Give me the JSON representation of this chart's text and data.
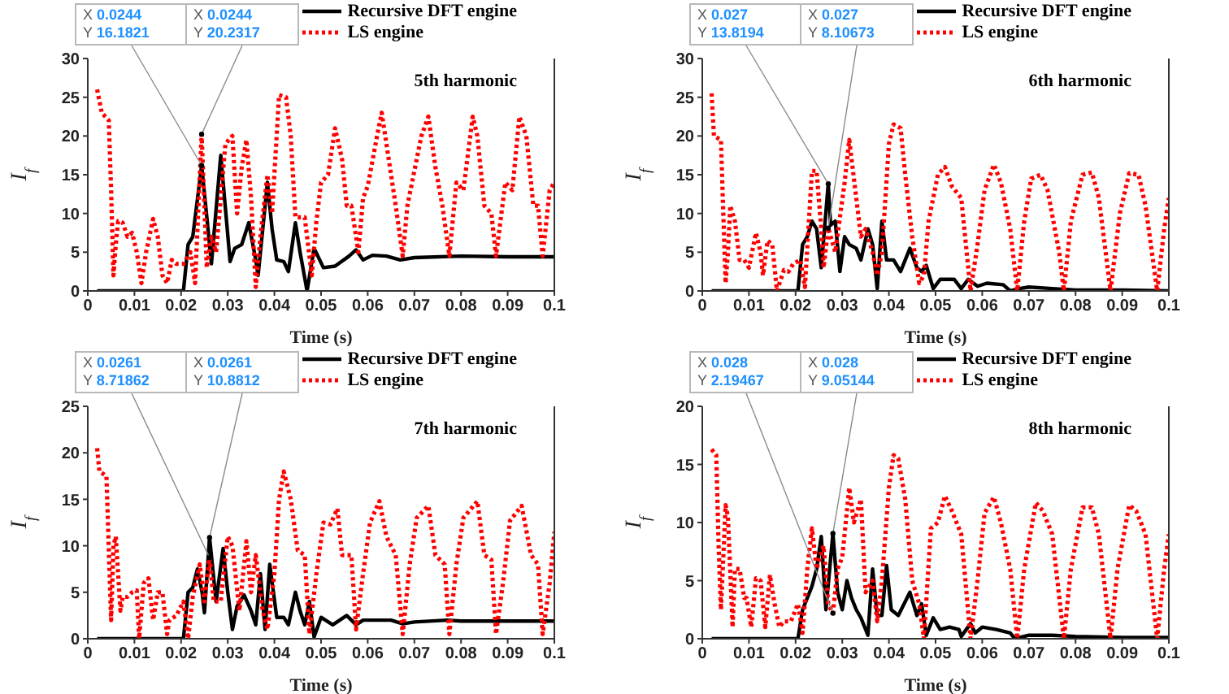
{
  "chart_data": [
    {
      "type": "line",
      "title": "5th harmonic",
      "xlabel": "Time (s)",
      "ylabel": "I$_{f}$",
      "xlim": [
        0,
        0.1
      ],
      "xticks": [
        0,
        0.01,
        0.02,
        0.03,
        0.04,
        0.05,
        0.06,
        0.07,
        0.08,
        0.09,
        0.1
      ],
      "ylim": [
        0,
        30
      ],
      "yticks": [
        0,
        5,
        10,
        15,
        20,
        25,
        30
      ],
      "grid": false,
      "legend": "top right",
      "marker": "none",
      "annotations": [
        {
          "text": "X 0.0244\nY 16.1821",
          "x": 0.0244,
          "y": 16.1821
        },
        {
          "text": "X 0.0244\nY 20.2317",
          "x": 0.0244,
          "y": 20.2317
        }
      ],
      "series": [
        {
          "name": "Recursive DFT engine",
          "color": "#000000",
          "line_style": "solid",
          "x": [
            0.002,
            0.0205,
            0.0215,
            0.0225,
            0.0244,
            0.0256,
            0.0265,
            0.0285,
            0.0305,
            0.0315,
            0.033,
            0.0345,
            0.036,
            0.0365,
            0.0385,
            0.0395,
            0.0405,
            0.042,
            0.043,
            0.0445,
            0.0455,
            0.047,
            0.0485,
            0.0505,
            0.053,
            0.056,
            0.0575,
            0.059,
            0.061,
            0.064,
            0.067,
            0.07,
            0.08,
            0.09,
            0.1
          ],
          "values": [
            0,
            0,
            6,
            7,
            16.1821,
            9,
            3.5,
            17.5,
            3.8,
            5.5,
            6,
            8.8,
            4,
            2,
            14,
            8,
            4,
            3.8,
            2.5,
            8.8,
            5,
            0,
            5.5,
            3,
            3.2,
            4.5,
            5.3,
            4,
            4.6,
            4.5,
            4,
            4.3,
            4.5,
            4.4,
            4.4
          ]
        },
        {
          "name": "LS engine",
          "color": "#ff0000",
          "line_style": "dotted",
          "x": [
            0.002,
            0.003,
            0.0045,
            0.005,
            0.0055,
            0.006,
            0.0065,
            0.0075,
            0.0085,
            0.0095,
            0.0105,
            0.0115,
            0.0125,
            0.014,
            0.015,
            0.016,
            0.017,
            0.018,
            0.019,
            0.0205,
            0.022,
            0.023,
            0.0244,
            0.0255,
            0.0265,
            0.0275,
            0.0295,
            0.031,
            0.032,
            0.033,
            0.034,
            0.035,
            0.036,
            0.037,
            0.0385,
            0.0395,
            0.041,
            0.0425,
            0.0435,
            0.0445,
            0.0465,
            0.048,
            0.049,
            0.05,
            0.0515,
            0.053,
            0.0545,
            0.0555,
            0.0565,
            0.058,
            0.059,
            0.06,
            0.062,
            0.063,
            0.0645,
            0.066,
            0.0675,
            0.0685,
            0.0695,
            0.0715,
            0.073,
            0.0745,
            0.076,
            0.0775,
            0.079,
            0.0805,
            0.0825,
            0.0835,
            0.085,
            0.0865,
            0.0875,
            0.0895,
            0.091,
            0.0925,
            0.094,
            0.0955,
            0.0965,
            0.0975,
            0.099,
            0.1
          ],
          "values": [
            26,
            23,
            22,
            13,
            2,
            6,
            9,
            8.8,
            7,
            7.5,
            5,
            1,
            5,
            9.3,
            7,
            2,
            1,
            4,
            3.5,
            3.5,
            5,
            1,
            20.2317,
            3,
            7,
            5,
            19,
            20,
            10,
            16,
            19.5,
            12,
            0.5,
            7,
            15,
            10,
            25.3,
            25,
            20,
            9.5,
            9.5,
            2,
            9,
            14,
            15,
            21,
            17,
            11,
            11,
            5,
            12,
            13.5,
            20,
            23,
            17,
            11,
            4.5,
            11,
            14,
            20,
            22.5,
            16,
            11,
            4.5,
            14,
            13,
            22.5,
            20,
            11,
            10,
            4.5,
            14,
            13,
            22.5,
            20,
            11,
            11,
            4.5,
            13,
            14
          ]
        }
      ]
    },
    {
      "type": "line",
      "title": "6th harmonic",
      "xlabel": "Time (s)",
      "ylabel": "I$_{f}$",
      "xlim": [
        0,
        0.1
      ],
      "xticks": [
        0,
        0.01,
        0.02,
        0.03,
        0.04,
        0.05,
        0.06,
        0.07,
        0.08,
        0.09,
        0.1
      ],
      "ylim": [
        0,
        30
      ],
      "yticks": [
        0,
        5,
        10,
        15,
        20,
        25,
        30
      ],
      "grid": false,
      "legend": "top right",
      "marker": "none",
      "annotations": [
        {
          "text": "X 0.027\nY 13.8194",
          "x": 0.027,
          "y": 13.8194
        },
        {
          "text": "X 0.027\nY 8.10673",
          "x": 0.027,
          "y": 8.10673
        }
      ],
      "series": [
        {
          "name": "Recursive DFT engine",
          "color": "#000000",
          "line_style": "solid",
          "x": [
            0.002,
            0.0205,
            0.0215,
            0.0225,
            0.0235,
            0.0245,
            0.0255,
            0.027,
            0.0275,
            0.0285,
            0.0295,
            0.0305,
            0.0315,
            0.033,
            0.034,
            0.0355,
            0.0365,
            0.0375,
            0.0385,
            0.0395,
            0.041,
            0.0425,
            0.0445,
            0.046,
            0.047,
            0.048,
            0.0495,
            0.051,
            0.054,
            0.0555,
            0.057,
            0.059,
            0.061,
            0.0645,
            0.066,
            0.068,
            0.07,
            0.075,
            0.08,
            0.09,
            0.1
          ],
          "values": [
            0,
            0,
            6,
            7,
            9,
            8,
            3,
            13.8194,
            8.5,
            9,
            2.5,
            7,
            6,
            5.5,
            4,
            8,
            6,
            0.3,
            9,
            4,
            4,
            2.5,
            5.5,
            3,
            2.5,
            3.3,
            0.3,
            1.5,
            1.5,
            0.3,
            1.5,
            0.6,
            1,
            0.8,
            0,
            0.3,
            0.5,
            0.3,
            0.1,
            0.1,
            0
          ]
        },
        {
          "name": "LS engine",
          "color": "#ff0000",
          "line_style": "dotted",
          "x": [
            0.002,
            0.0025,
            0.004,
            0.0045,
            0.005,
            0.0055,
            0.006,
            0.007,
            0.008,
            0.009,
            0.01,
            0.0105,
            0.0115,
            0.0125,
            0.013,
            0.014,
            0.015,
            0.016,
            0.0175,
            0.0185,
            0.0195,
            0.021,
            0.022,
            0.0235,
            0.0245,
            0.0255,
            0.026,
            0.027,
            0.0285,
            0.0305,
            0.0315,
            0.033,
            0.034,
            0.035,
            0.0365,
            0.0375,
            0.0385,
            0.04,
            0.041,
            0.0425,
            0.0435,
            0.045,
            0.0465,
            0.0475,
            0.0485,
            0.0505,
            0.052,
            0.0535,
            0.0555,
            0.0575,
            0.059,
            0.0605,
            0.0625,
            0.064,
            0.066,
            0.0675,
            0.069,
            0.0705,
            0.0725,
            0.074,
            0.0765,
            0.0775,
            0.079,
            0.0815,
            0.0835,
            0.085,
            0.0875,
            0.0895,
            0.0915,
            0.0935,
            0.095,
            0.0975,
            0.099,
            0.1
          ],
          "values": [
            25.5,
            20,
            19.5,
            10,
            1,
            5,
            11,
            9,
            4,
            4,
            3,
            4.5,
            7.5,
            5,
            2,
            6.5,
            6,
            0,
            2.7,
            2.5,
            3.5,
            4,
            0.5,
            15.5,
            15.5,
            8,
            3,
            8.10673,
            5,
            14,
            19.5,
            12,
            7,
            8,
            5,
            2,
            5,
            19,
            21.5,
            21,
            15,
            7,
            1,
            2,
            9,
            15,
            16,
            13.5,
            12,
            0,
            6,
            13,
            16.3,
            14,
            8,
            0,
            9,
            14.5,
            15,
            13,
            5,
            0,
            9,
            15,
            15.3,
            12,
            0,
            10,
            15.2,
            15,
            11,
            0,
            8,
            12
          ]
        }
      ]
    },
    {
      "type": "line",
      "title": "7th harmonic",
      "xlabel": "Time (s)",
      "ylabel": "I$_{f}$",
      "xlim": [
        0,
        0.1
      ],
      "xticks": [
        0,
        0.01,
        0.02,
        0.03,
        0.04,
        0.05,
        0.06,
        0.07,
        0.08,
        0.09,
        0.1
      ],
      "ylim": [
        0,
        25
      ],
      "yticks": [
        0,
        5,
        10,
        15,
        20,
        25
      ],
      "grid": false,
      "legend": "top right",
      "marker": "none",
      "annotations": [
        {
          "text": "X 0.0261\nY 8.71862",
          "x": 0.0261,
          "y": 8.71862
        },
        {
          "text": "X 0.0261\nY 10.8812",
          "x": 0.0261,
          "y": 10.8812
        }
      ],
      "series": [
        {
          "name": "Recursive DFT engine",
          "color": "#000000",
          "line_style": "solid",
          "x": [
            0.002,
            0.0205,
            0.0215,
            0.0225,
            0.0235,
            0.0245,
            0.025,
            0.0261,
            0.0275,
            0.029,
            0.03,
            0.031,
            0.032,
            0.0335,
            0.035,
            0.036,
            0.037,
            0.038,
            0.039,
            0.0405,
            0.042,
            0.043,
            0.0445,
            0.0455,
            0.0465,
            0.0475,
            0.0485,
            0.05,
            0.0525,
            0.0555,
            0.0575,
            0.059,
            0.062,
            0.065,
            0.0675,
            0.07,
            0.077,
            0.08,
            0.09,
            0.1
          ],
          "values": [
            0,
            0,
            5,
            5.5,
            7.5,
            5,
            2.8,
            10.8812,
            4,
            9.7,
            5,
            1,
            3.5,
            4.7,
            3,
            1.5,
            7,
            1,
            8,
            2.3,
            2.3,
            1.5,
            5,
            3,
            1.5,
            4,
            0.2,
            2.3,
            1.5,
            2.5,
            1.5,
            2,
            2,
            2,
            1.6,
            1.8,
            2,
            1.9,
            1.9,
            1.9
          ]
        },
        {
          "name": "LS engine",
          "color": "#ff0000",
          "line_style": "dotted",
          "x": [
            0.002,
            0.0025,
            0.004,
            0.005,
            0.0055,
            0.006,
            0.007,
            0.0075,
            0.0085,
            0.0095,
            0.0105,
            0.011,
            0.012,
            0.013,
            0.014,
            0.015,
            0.016,
            0.017,
            0.0175,
            0.019,
            0.0205,
            0.0215,
            0.0225,
            0.024,
            0.025,
            0.0261,
            0.027,
            0.0285,
            0.03,
            0.031,
            0.0325,
            0.034,
            0.035,
            0.036,
            0.0375,
            0.0385,
            0.04,
            0.041,
            0.042,
            0.0435,
            0.045,
            0.0465,
            0.0475,
            0.049,
            0.0505,
            0.052,
            0.0535,
            0.0545,
            0.0565,
            0.0575,
            0.059,
            0.0605,
            0.0625,
            0.064,
            0.066,
            0.0675,
            0.069,
            0.0705,
            0.073,
            0.0745,
            0.0765,
            0.0775,
            0.079,
            0.0805,
            0.0835,
            0.085,
            0.0865,
            0.0875,
            0.089,
            0.0905,
            0.093,
            0.095,
            0.0965,
            0.0975,
            0.099,
            0.1
          ],
          "values": [
            20.5,
            18,
            17.5,
            2,
            10,
            11,
            3,
            4.5,
            4.5,
            5,
            5.2,
            0,
            6,
            6.5,
            2,
            5,
            5,
            0.5,
            2,
            2.5,
            4,
            0,
            4.5,
            8,
            4,
            8.71862,
            4,
            4,
            11,
            10,
            3,
            10.5,
            5,
            9,
            3,
            1,
            7,
            15,
            18,
            15,
            9.5,
            9,
            0.5,
            7,
            12.5,
            12.3,
            14,
            9,
            9,
            1,
            7,
            12.5,
            14.8,
            11,
            9,
            0.5,
            8,
            13,
            14.3,
            9,
            8,
            0.5,
            8,
            13,
            14.8,
            9,
            8.5,
            0.5,
            6,
            12.7,
            14.3,
            9,
            8,
            0.5,
            6,
            11.5
          ]
        }
      ]
    },
    {
      "type": "line",
      "title": "8th harmonic",
      "xlabel": "Time (s)",
      "ylabel": "I$_{f}$",
      "xlim": [
        0,
        0.1
      ],
      "xticks": [
        0,
        0.01,
        0.02,
        0.03,
        0.04,
        0.05,
        0.06,
        0.07,
        0.08,
        0.09,
        0.1
      ],
      "ylim": [
        0,
        20
      ],
      "yticks": [
        0,
        5,
        10,
        15,
        20
      ],
      "grid": false,
      "legend": "top right",
      "marker": "none",
      "annotations": [
        {
          "text": "X 0.028\nY 2.19467",
          "x": 0.028,
          "y": 2.19467
        },
        {
          "text": "X 0.028\nY 9.05144",
          "x": 0.028,
          "y": 9.05144
        }
      ],
      "series": [
        {
          "name": "Recursive DFT engine",
          "color": "#000000",
          "line_style": "solid",
          "x": [
            0.002,
            0.0205,
            0.0215,
            0.0235,
            0.0245,
            0.0255,
            0.0265,
            0.028,
            0.029,
            0.03,
            0.031,
            0.032,
            0.033,
            0.034,
            0.0355,
            0.0365,
            0.0375,
            0.0385,
            0.0395,
            0.0405,
            0.042,
            0.0445,
            0.046,
            0.047,
            0.048,
            0.0495,
            0.051,
            0.053,
            0.055,
            0.0555,
            0.0575,
            0.0585,
            0.06,
            0.063,
            0.066,
            0.067,
            0.07,
            0.075,
            0.08,
            0.09,
            0.1
          ],
          "values": [
            0,
            0,
            2.5,
            4.5,
            6,
            8.8,
            2.5,
            9.05144,
            4,
            2.5,
            5,
            3.5,
            2.5,
            1.8,
            0.3,
            6,
            2,
            2,
            6.3,
            2.5,
            2,
            4,
            2,
            3,
            0.3,
            1.8,
            0.8,
            1,
            0.8,
            0.2,
            1.3,
            0.5,
            1,
            0.8,
            0.5,
            0,
            0.3,
            0.3,
            0.2,
            0.1,
            0.1
          ]
        },
        {
          "name": "LS engine",
          "color": "#ff0000",
          "line_style": "dotted",
          "x": [
            0.002,
            0.003,
            0.0035,
            0.004,
            0.005,
            0.0055,
            0.0065,
            0.007,
            0.008,
            0.009,
            0.0095,
            0.0105,
            0.0115,
            0.0125,
            0.0135,
            0.0145,
            0.0155,
            0.0165,
            0.0175,
            0.019,
            0.0205,
            0.0215,
            0.0225,
            0.0235,
            0.0245,
            0.026,
            0.027,
            0.028,
            0.029,
            0.03,
            0.0315,
            0.0325,
            0.034,
            0.035,
            0.0365,
            0.0375,
            0.0385,
            0.04,
            0.041,
            0.042,
            0.0435,
            0.045,
            0.0465,
            0.0475,
            0.049,
            0.0505,
            0.052,
            0.0535,
            0.0555,
            0.0575,
            0.059,
            0.0605,
            0.0625,
            0.064,
            0.066,
            0.0675,
            0.069,
            0.0715,
            0.073,
            0.075,
            0.0775,
            0.079,
            0.0815,
            0.0835,
            0.085,
            0.0875,
            0.089,
            0.0915,
            0.093,
            0.095,
            0.0975,
            0.099,
            0.1
          ],
          "values": [
            16.3,
            15.8,
            8,
            2.5,
            11.5,
            10.5,
            1,
            6,
            6,
            3.5,
            3.5,
            1,
            5.2,
            5,
            1,
            5.5,
            3,
            1,
            1.5,
            1.5,
            3,
            0.5,
            6,
            9.5,
            6,
            8,
            3,
            2.19467,
            6,
            7,
            13,
            10,
            12,
            4,
            5,
            1.5,
            5,
            13,
            15.8,
            15.5,
            12,
            5,
            3,
            0,
            9.5,
            10,
            12.3,
            11,
            9,
            0,
            5,
            10.8,
            12.2,
            10,
            6,
            0,
            6,
            11.7,
            11,
            9,
            0,
            6,
            11.3,
            11.3,
            9,
            0,
            6,
            11.5,
            11,
            9,
            0,
            6,
            9
          ]
        }
      ]
    }
  ]
}
